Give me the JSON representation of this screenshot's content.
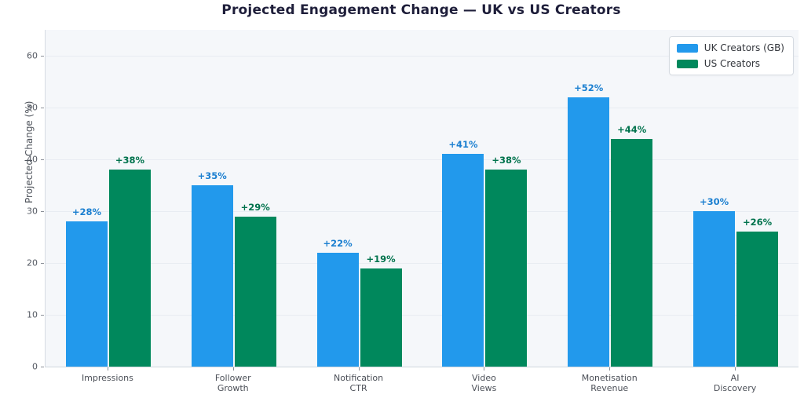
{
  "title": "Projected Engagement Change — UK vs US Creators",
  "chart_data": {
    "type": "bar",
    "title": "Projected Engagement Change — UK vs US Creators",
    "categories": [
      "Impressions",
      "Follower Growth",
      "Notification CTR",
      "Video Views",
      "Monetisation Revenue",
      "AI Discovery"
    ],
    "series": [
      {
        "name": "UK Creators (GB)",
        "values": [
          28,
          35,
          22,
          41,
          52,
          30
        ],
        "labels": [
          "+28%",
          "+35%",
          "+22%",
          "+41%",
          "+52%",
          "+30%"
        ],
        "color": "#2299ec",
        "label_color": "#1b7fd0"
      },
      {
        "name": "US Creators",
        "values": [
          38,
          29,
          19,
          38,
          44,
          26
        ],
        "labels": [
          "+38%",
          "+29%",
          "+19%",
          "+38%",
          "+44%",
          "+26%"
        ],
        "color": "#00885c",
        "label_color": "#00734d"
      }
    ],
    "xlabel": "",
    "ylabel": "Projected Change (%)",
    "yticks": [
      0,
      10,
      20,
      30,
      40,
      50,
      60
    ],
    "ylim": [
      0,
      65
    ],
    "grid": true,
    "legend_position": "top-right",
    "plot_background": "#f5f7fa",
    "grid_color": "#e8ecf2"
  }
}
